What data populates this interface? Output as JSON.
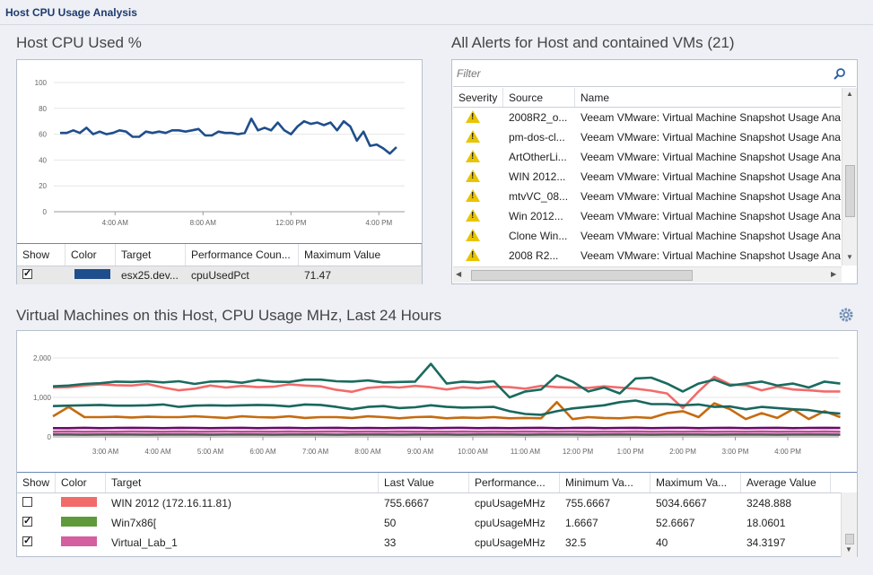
{
  "page": {
    "title": "Host CPU Usage Analysis"
  },
  "host_cpu": {
    "title": "Host CPU Used %",
    "legend_headers": [
      "Show",
      "Color",
      "Target",
      "Performance Coun...",
      "Maximum Value"
    ],
    "legend_row": {
      "show": true,
      "color": "#1f4e8c",
      "target": "esx25.dev...",
      "counter": "cpuUsedPct",
      "max": "71.47"
    }
  },
  "alerts": {
    "title": "All Alerts for Host and contained VMs (21)",
    "filter_placeholder": "Filter",
    "headers": [
      "Severity",
      "Source",
      "Name"
    ],
    "rows": [
      {
        "source": "2008R2_o...",
        "name": "Veeam VMware: Virtual Machine Snapshot Usage Analy"
      },
      {
        "source": "pm-dos-cl...",
        "name": "Veeam VMware: Virtual Machine Snapshot Usage Analy"
      },
      {
        "source": "ArtOtherLi...",
        "name": "Veeam VMware: Virtual Machine Snapshot Usage Analy"
      },
      {
        "source": "WIN 2012...",
        "name": "Veeam VMware: Virtual Machine Snapshot Usage Analy"
      },
      {
        "source": "mtvVC_08...",
        "name": "Veeam VMware: Virtual Machine Snapshot Usage Analy"
      },
      {
        "source": "Win 2012...",
        "name": "Veeam VMware: Virtual Machine Snapshot Usage Analy"
      },
      {
        "source": "Clone Win...",
        "name": "Veeam VMware: Virtual Machine Snapshot Usage Analy"
      },
      {
        "source": "2008 R2...",
        "name": "Veeam VMware: Virtual Machine Snapshot Usage Analy"
      }
    ]
  },
  "vm_usage": {
    "title": "Virtual Machines on this Host, CPU Usage MHz, Last 24 Hours",
    "legend_headers": [
      "Show",
      "Color",
      "Target",
      "Last Value",
      "Performance...",
      "Minimum Va...",
      "Maximum Va...",
      "Average Value"
    ],
    "legend_rows": [
      {
        "show": false,
        "color": "#f26b6b",
        "target": "WIN 2012 (172.16.11.81)",
        "last": "755.6667",
        "counter": "cpuUsageMHz",
        "min": "755.6667",
        "max": "5034.6667",
        "avg": "3248.888"
      },
      {
        "show": true,
        "color": "#5e9a3a",
        "target": "Win7x86[",
        "last": "50",
        "counter": "cpuUsageMHz",
        "min": "1.6667",
        "max": "52.6667",
        "avg": "18.0601"
      },
      {
        "show": true,
        "color": "#d35fa0",
        "target": "Virtual_Lab_1",
        "last": "33",
        "counter": "cpuUsageMHz",
        "min": "32.5",
        "max": "40",
        "avg": "34.3197"
      }
    ]
  },
  "chart_data": [
    {
      "type": "line",
      "ylim": [
        0,
        100
      ],
      "yticks": [
        "0",
        "20",
        "40",
        "60",
        "80",
        "100"
      ],
      "xticks": [
        "4:00 AM",
        "8:00 AM",
        "12:00 PM",
        "4:00 PM"
      ],
      "xtick_hours": [
        4,
        8,
        12,
        16
      ],
      "x_hours": [
        1.5,
        1.8,
        2.1,
        2.4,
        2.7,
        3.0,
        3.3,
        3.6,
        3.9,
        4.2,
        4.5,
        4.8,
        5.1,
        5.4,
        5.7,
        6.0,
        6.3,
        6.6,
        6.9,
        7.2,
        7.5,
        7.8,
        8.1,
        8.4,
        8.7,
        9.0,
        9.3,
        9.6,
        9.9,
        10.2,
        10.5,
        10.8,
        11.1,
        11.4,
        11.7,
        12.0,
        12.3,
        12.6,
        12.9,
        13.2,
        13.5,
        13.8,
        14.1,
        14.4,
        14.7,
        15.0,
        15.3,
        15.6,
        15.9,
        16.2,
        16.5,
        16.8
      ],
      "series": [
        {
          "color": "#1f4e8c",
          "values": [
            61,
            61,
            63,
            61,
            65,
            60,
            62,
            60,
            61,
            63,
            62,
            58,
            58,
            62,
            61,
            62,
            61,
            63,
            63,
            62,
            63,
            64,
            59,
            59,
            62,
            61,
            61,
            60,
            61,
            72,
            63,
            65,
            63,
            69,
            63,
            60,
            66,
            70,
            68,
            69,
            67,
            69,
            63,
            70,
            66,
            55,
            62,
            51,
            52,
            49,
            45,
            50
          ]
        }
      ]
    },
    {
      "type": "line",
      "ylim": [
        0,
        2000
      ],
      "yticks": [
        "0",
        "1,000",
        "2,000"
      ],
      "xticks": [
        "3:00 AM",
        "4:00 AM",
        "5:00 AM",
        "6:00 AM",
        "7:00 AM",
        "8:00 AM",
        "9:00 AM",
        "10:00 AM",
        "11:00 AM",
        "12:00 PM",
        "1:00 PM",
        "2:00 PM",
        "3:00 PM",
        "4:00 PM"
      ],
      "xtick_hours": [
        3,
        4,
        5,
        6,
        7,
        8,
        9,
        10,
        11,
        12,
        13,
        14,
        15,
        16
      ],
      "x_hours": [
        2.0,
        2.3,
        2.6,
        2.9,
        3.2,
        3.5,
        3.8,
        4.1,
        4.4,
        4.7,
        5.0,
        5.3,
        5.6,
        5.9,
        6.2,
        6.5,
        6.8,
        7.1,
        7.4,
        7.7,
        8.0,
        8.3,
        8.6,
        8.9,
        9.2,
        9.5,
        9.8,
        10.1,
        10.4,
        10.7,
        11.0,
        11.3,
        11.6,
        11.9,
        12.2,
        12.5,
        12.8,
        13.1,
        13.4,
        13.7,
        14.0,
        14.3,
        14.6,
        14.9,
        15.2,
        15.5,
        15.8,
        16.1,
        16.4,
        16.7,
        17.0
      ],
      "series": [
        {
          "color": "#f26b6b",
          "values": [
            1250,
            1260,
            1300,
            1330,
            1310,
            1300,
            1340,
            1250,
            1180,
            1220,
            1300,
            1250,
            1290,
            1260,
            1270,
            1330,
            1300,
            1280,
            1190,
            1140,
            1240,
            1270,
            1250,
            1290,
            1260,
            1200,
            1260,
            1230,
            1270,
            1260,
            1220,
            1290,
            1260,
            1250,
            1240,
            1280,
            1250,
            1220,
            1170,
            1100,
            730,
            1150,
            1520,
            1330,
            1310,
            1180,
            1270,
            1200,
            1180,
            1150,
            1150
          ]
        },
        {
          "color": "#1a6b5f",
          "values": [
            1280,
            1300,
            1340,
            1360,
            1400,
            1390,
            1410,
            1380,
            1410,
            1340,
            1400,
            1410,
            1370,
            1440,
            1400,
            1390,
            1450,
            1450,
            1410,
            1400,
            1430,
            1380,
            1390,
            1400,
            1850,
            1350,
            1400,
            1380,
            1410,
            1000,
            1150,
            1200,
            1560,
            1400,
            1150,
            1250,
            1100,
            1480,
            1500,
            1350,
            1150,
            1350,
            1450,
            1300,
            1350,
            1400,
            1300,
            1350,
            1250,
            1400,
            1350
          ]
        },
        {
          "color": "#c56b10",
          "values": [
            520,
            760,
            500,
            500,
            510,
            490,
            510,
            500,
            500,
            520,
            500,
            480,
            520,
            500,
            490,
            520,
            480,
            500,
            500,
            480,
            520,
            500,
            470,
            500,
            510,
            470,
            490,
            480,
            500,
            470,
            480,
            470,
            880,
            450,
            500,
            480,
            470,
            500,
            480,
            600,
            650,
            500,
            850,
            700,
            450,
            600,
            480,
            700,
            450,
            650,
            500
          ]
        },
        {
          "color": "#19675e",
          "values": [
            780,
            790,
            800,
            810,
            790,
            790,
            800,
            820,
            760,
            790,
            800,
            790,
            800,
            810,
            800,
            770,
            820,
            810,
            760,
            700,
            760,
            780,
            730,
            750,
            800,
            760,
            740,
            750,
            760,
            650,
            580,
            560,
            650,
            720,
            760,
            800,
            880,
            920,
            830,
            830,
            800,
            820,
            760,
            770,
            700,
            760,
            730,
            700,
            680,
            620,
            590
          ]
        },
        {
          "color": "#6a0d6b",
          "values": [
            220,
            220,
            230,
            220,
            225,
            230,
            225,
            220,
            230,
            225,
            220,
            225,
            230,
            220,
            225,
            230,
            220,
            225,
            230,
            220,
            225,
            220,
            225,
            230,
            220,
            225,
            230,
            220,
            225,
            220,
            225,
            230,
            220,
            225,
            230,
            220,
            225,
            230,
            220,
            225,
            230,
            220,
            225,
            230,
            220,
            225,
            230,
            220,
            225,
            230,
            225
          ]
        },
        {
          "color": "#c1499a",
          "values": [
            130,
            135,
            130,
            132,
            130,
            135,
            132,
            130,
            135,
            130,
            132,
            135,
            130,
            132,
            130,
            135,
            130,
            132,
            135,
            130,
            132,
            130,
            135,
            130,
            132,
            130,
            135,
            130,
            132,
            130,
            135,
            130,
            132,
            135,
            130,
            132,
            130,
            135,
            130,
            132,
            130,
            135,
            130,
            132,
            130,
            135,
            130,
            132,
            130,
            135,
            130
          ]
        },
        {
          "color": "#555555",
          "values": [
            60,
            60,
            55,
            60,
            58,
            60,
            55,
            60,
            58,
            60,
            55,
            60,
            58,
            60,
            55,
            60,
            58,
            60,
            55,
            60,
            58,
            60,
            55,
            60,
            58,
            60,
            55,
            60,
            58,
            60,
            55,
            60,
            58,
            60,
            55,
            60,
            58,
            60,
            55,
            60,
            58,
            60,
            55,
            60,
            58,
            60,
            55,
            60,
            58,
            60,
            55
          ]
        }
      ]
    }
  ]
}
